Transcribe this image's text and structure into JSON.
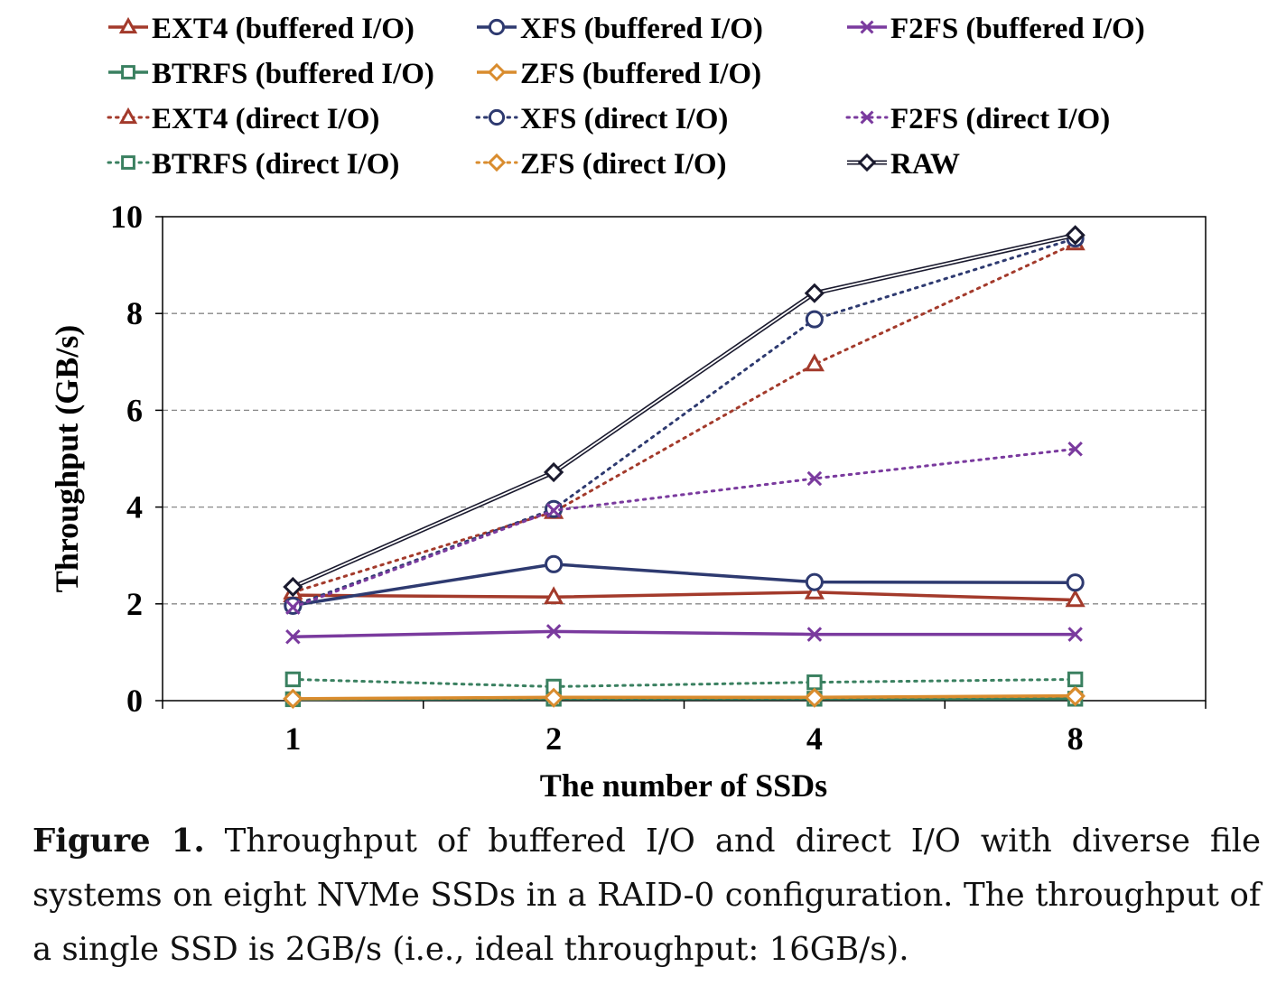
{
  "chart_data": {
    "type": "line",
    "xlabel": "The number of SSDs",
    "ylabel": "Throughput (GB/s)",
    "categories": [
      "1",
      "2",
      "4",
      "8"
    ],
    "ylim": [
      0,
      10
    ],
    "yticks": [
      "0",
      "2",
      "4",
      "6",
      "8",
      "10"
    ],
    "grid": "horizontal dashed",
    "legend_position": "top",
    "series": [
      {
        "name": "EXT4 (buffered I/O)",
        "values": [
          2.18,
          2.14,
          2.24,
          2.08
        ],
        "color": "#a33a2b",
        "marker": "triangle",
        "dash": "solid"
      },
      {
        "name": "XFS (buffered I/O)",
        "values": [
          1.97,
          2.82,
          2.45,
          2.44
        ],
        "color": "#2e3a70",
        "marker": "circle",
        "dash": "solid"
      },
      {
        "name": "F2FS (buffered I/O)",
        "values": [
          1.32,
          1.43,
          1.37,
          1.37
        ],
        "color": "#7a3a9e",
        "marker": "x",
        "dash": "solid"
      },
      {
        "name": "BTRFS (buffered I/O)",
        "values": [
          0.03,
          0.04,
          0.04,
          0.04
        ],
        "color": "#3a8060",
        "marker": "square",
        "dash": "solid"
      },
      {
        "name": "ZFS (buffered I/O)",
        "values": [
          0.04,
          0.07,
          0.07,
          0.1
        ],
        "color": "#d98c2e",
        "marker": "diamond",
        "dash": "solid"
      },
      {
        "name": "EXT4 (direct I/O)",
        "values": [
          2.24,
          3.9,
          6.95,
          9.45
        ],
        "color": "#a33a2b",
        "marker": "triangle",
        "dash": "dotted"
      },
      {
        "name": "XFS (direct I/O)",
        "values": [
          1.96,
          3.96,
          7.88,
          9.55
        ],
        "color": "#2e3a70",
        "marker": "circle",
        "dash": "dotted"
      },
      {
        "name": "F2FS (direct I/O)",
        "values": [
          1.93,
          3.93,
          4.59,
          5.2
        ],
        "color": "#7a3a9e",
        "marker": "x",
        "dash": "dotted"
      },
      {
        "name": "BTRFS (direct I/O)",
        "values": [
          0.44,
          0.29,
          0.38,
          0.44
        ],
        "color": "#3a8060",
        "marker": "square",
        "dash": "dotted"
      },
      {
        "name": "ZFS (direct I/O)",
        "values": [
          0.04,
          0.06,
          0.06,
          0.09
        ],
        "color": "#d98c2e",
        "marker": "diamond",
        "dash": "dotted"
      },
      {
        "name": "RAW",
        "values": [
          2.35,
          4.72,
          8.42,
          9.62
        ],
        "color": "#1a1a2e",
        "marker": "diamond",
        "dash": "double"
      }
    ]
  },
  "caption": {
    "label": "Figure 1.",
    "text": " Throughput of buffered I/O and direct I/O with diverse file systems on eight NVMe SSDs in a RAID-0 configuration. The throughput of a single SSD is 2GB/s (i.e., ideal throughput: 16GB/s)."
  }
}
